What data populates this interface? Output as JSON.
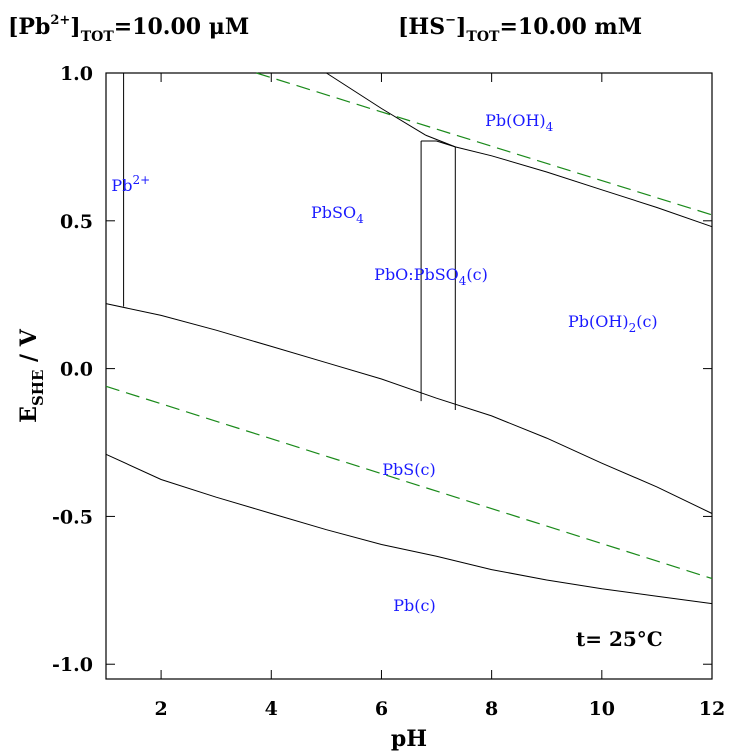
{
  "header": {
    "left": {
      "open": "[Pb",
      "sup": "2+",
      "close": "]",
      "sub": "TOT",
      "value": "=10.00 μM"
    },
    "right": {
      "open": "[HS",
      "sup": "−",
      "close": "]",
      "sub": "TOT",
      "value": "=10.00 mM"
    }
  },
  "chart_data": {
    "type": "line",
    "title": "",
    "xlabel": "pH",
    "ylabel": {
      "main": "E",
      "sub": "SHE",
      "rest": " / V"
    },
    "xlim": [
      1,
      12
    ],
    "ylim": [
      -1.05,
      1.0
    ],
    "x_ticks": [
      2,
      4,
      6,
      8,
      10,
      12
    ],
    "x_tick_labels": [
      "2",
      "4",
      "6",
      "8",
      "10",
      "12"
    ],
    "y_ticks": [
      1.0,
      0.5,
      0.0,
      -0.5,
      -1.0
    ],
    "y_tick_labels": [
      "1.0",
      "0.5",
      "0.0",
      "-0.5",
      "-1.0"
    ],
    "grid": false,
    "temperature_label": "t= 25°C",
    "boundaries": [
      {
        "name": "Pb2+ / PbSO4",
        "points": [
          [
            1.32,
            1.0
          ],
          [
            1.32,
            0.21
          ]
        ]
      },
      {
        "name": "PbSO4 / PbS(c) upper",
        "points": [
          [
            1,
            0.22
          ],
          [
            2,
            0.18
          ],
          [
            3,
            0.13
          ],
          [
            4,
            0.075
          ],
          [
            5,
            0.02
          ],
          [
            6,
            -0.035
          ],
          [
            7,
            -0.1
          ],
          [
            8,
            -0.16
          ],
          [
            9,
            -0.235
          ],
          [
            10,
            -0.32
          ],
          [
            11,
            -0.4
          ],
          [
            12,
            -0.49
          ]
        ]
      },
      {
        "name": "PbS(c) / Pb(c)",
        "points": [
          [
            1,
            -0.29
          ],
          [
            2,
            -0.375
          ],
          [
            3,
            -0.435
          ],
          [
            4,
            -0.49
          ],
          [
            5,
            -0.545
          ],
          [
            6,
            -0.595
          ],
          [
            7,
            -0.635
          ],
          [
            8,
            -0.68
          ],
          [
            9,
            -0.715
          ],
          [
            10,
            -0.745
          ],
          [
            11,
            -0.77
          ],
          [
            12,
            -0.795
          ]
        ]
      },
      {
        "name": "PbO:PbSO4 left",
        "points": [
          [
            6.72,
            0.77
          ],
          [
            6.72,
            -0.11
          ]
        ]
      },
      {
        "name": "PbO:PbSO4 right",
        "points": [
          [
            7.34,
            0.75
          ],
          [
            7.34,
            -0.14
          ]
        ]
      },
      {
        "name": "PbO:PbSO4 top",
        "points": [
          [
            6.72,
            0.77
          ],
          [
            7.0,
            0.77
          ],
          [
            7.34,
            0.75
          ]
        ]
      },
      {
        "name": "Pb(OH)4 boundary upper",
        "points": [
          [
            5.0,
            1.0
          ],
          [
            6.0,
            0.88
          ],
          [
            6.8,
            0.79
          ]
        ]
      },
      {
        "name": "Pb(OH)4 boundary lower",
        "points": [
          [
            6.8,
            0.79
          ],
          [
            7.34,
            0.75
          ],
          [
            8,
            0.72
          ],
          [
            9,
            0.665
          ],
          [
            10,
            0.605
          ],
          [
            11,
            0.545
          ],
          [
            12,
            0.48
          ]
        ]
      }
    ],
    "water_limits": [
      {
        "name": "O2/H2O",
        "points": [
          [
            3.73,
            1.0
          ],
          [
            12,
            0.52
          ]
        ]
      },
      {
        "name": "H2O/H2",
        "points": [
          [
            1,
            -0.06
          ],
          [
            12,
            -0.71
          ]
        ]
      }
    ],
    "regions": [
      {
        "main": "Pb",
        "sup": "2+",
        "sub": "",
        "rest": "",
        "x": 1.45,
        "y": 0.6
      },
      {
        "main": "PbSO",
        "sup": "",
        "sub": "4",
        "rest": "",
        "x": 5.2,
        "y": 0.51
      },
      {
        "main": "PbO:PbSO",
        "sup": "",
        "sub": "4",
        "rest": "(c)",
        "x": 6.9,
        "y": 0.3
      },
      {
        "main": "Pb(OH)",
        "sup": "",
        "sub": "4",
        "rest": "",
        "x": 8.5,
        "y": 0.82
      },
      {
        "main": "Pb(OH)",
        "sup": "",
        "sub": "2",
        "rest": "(c)",
        "x": 10.2,
        "y": 0.14
      },
      {
        "main": "PbS(c)",
        "sup": "",
        "sub": "",
        "rest": "",
        "x": 6.5,
        "y": -0.36
      },
      {
        "main": "Pb(c)",
        "sup": "",
        "sub": "",
        "rest": "",
        "x": 6.6,
        "y": -0.82
      }
    ],
    "colors": {
      "boundary": "#000000",
      "water_limit": "#1a8a1a",
      "region_label": "#1a1aff"
    }
  }
}
